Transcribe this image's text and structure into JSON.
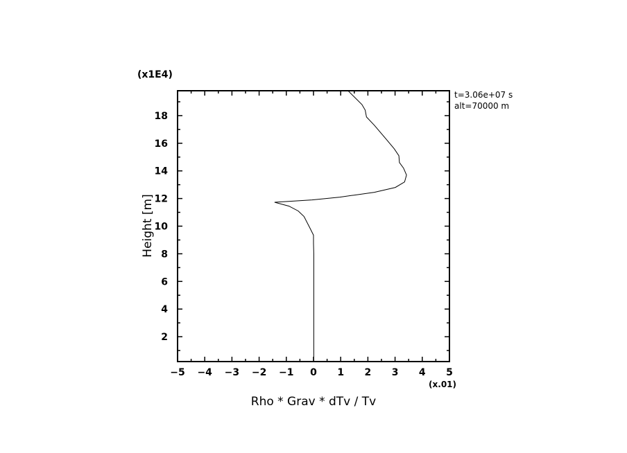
{
  "chart_data": {
    "type": "line",
    "xlabel": "Rho * Grav * dTv / Tv",
    "ylabel": "Height [m]",
    "x_multiplier": "(x.01)",
    "y_multiplier": "(x1E4)",
    "xlim": [
      -5,
      5
    ],
    "ylim": [
      0.2,
      19.8
    ],
    "x_ticks": [
      -5,
      -4,
      -3,
      -2,
      -1,
      0,
      1,
      2,
      3,
      4,
      5
    ],
    "y_ticks": [
      2,
      4,
      6,
      8,
      10,
      12,
      14,
      16,
      18
    ],
    "grid": false,
    "annotations": [
      "t=3.06e+07 s",
      "alt=70000 m"
    ],
    "line_color": "#000000",
    "series": [
      {
        "x": [
          0.01,
          0.01,
          0.0,
          0.0,
          -0.14,
          -0.35,
          -0.56,
          -0.9,
          -1.43,
          -0.05,
          0.97,
          2.24,
          3.01,
          3.35,
          3.42,
          3.31,
          3.16,
          3.14,
          2.97,
          2.67,
          2.24,
          1.95,
          1.9,
          1.78,
          1.27
        ],
        "y": [
          0.2,
          8.0,
          8.75,
          9.35,
          9.9,
          10.7,
          11.1,
          11.45,
          11.73,
          11.9,
          12.1,
          12.45,
          12.8,
          13.2,
          13.7,
          14.2,
          14.6,
          15.1,
          15.6,
          16.3,
          17.3,
          17.9,
          18.4,
          18.8,
          19.8
        ]
      }
    ]
  }
}
